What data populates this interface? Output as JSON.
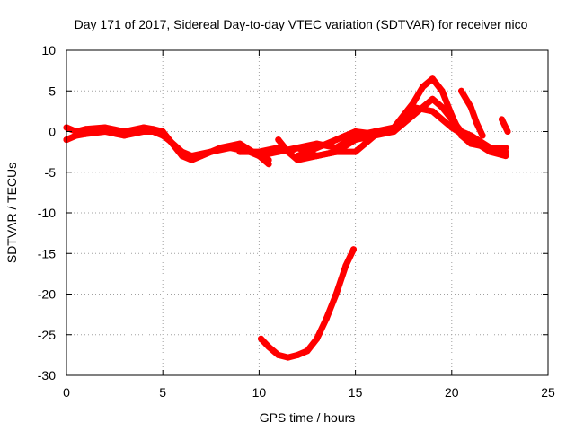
{
  "chart_data": {
    "type": "scatter",
    "title": "Day 171 of 2017, Sidereal Day-to-day VTEC variation (SDTVAR) for receiver nico",
    "xlabel": "GPS time / hours",
    "ylabel": "SDTVAR / TECUs",
    "xlim": [
      0,
      25
    ],
    "ylim": [
      -30,
      10
    ],
    "xticks": [
      "0",
      "5",
      "10",
      "15",
      "20",
      "25"
    ],
    "yticks": [
      "10",
      "5",
      "0",
      "-5",
      "-10",
      "-15",
      "-20",
      "-25",
      "-30"
    ],
    "grid": true,
    "color": "#ff0000",
    "series": [
      {
        "name": "track-1",
        "x": [
          0.0,
          0.5,
          1.0,
          2.0,
          3.0,
          4.0,
          4.5,
          5.0,
          5.5,
          6.0,
          6.5,
          7.0,
          8.0,
          9.0,
          10.0,
          10.5
        ],
        "y": [
          0.5,
          0.0,
          0.3,
          0.5,
          0.0,
          0.5,
          0.3,
          0.0,
          -1.5,
          -3.0,
          -3.5,
          -3.0,
          -2.0,
          -1.5,
          -3.0,
          -4.0
        ]
      },
      {
        "name": "track-2",
        "x": [
          0.0,
          0.5,
          1.0,
          2.0,
          3.0,
          4.0,
          4.5,
          5.0,
          5.3,
          6.0,
          6.5,
          7.5,
          8.5,
          9.5,
          10.5
        ],
        "y": [
          -1.0,
          -0.5,
          -0.3,
          0.0,
          -0.5,
          0.0,
          0.0,
          -0.5,
          -1.0,
          -2.5,
          -3.0,
          -2.5,
          -2.0,
          -2.5,
          -3.5
        ]
      },
      {
        "name": "track-3",
        "x": [
          9.0,
          10.0,
          11.0,
          11.5,
          12.0,
          13.0,
          14.0,
          15.0,
          16.0,
          17.0,
          18.0,
          18.5,
          19.0,
          19.5,
          20.0,
          20.5,
          21.0,
          22.0,
          22.8
        ],
        "y": [
          -2.5,
          -2.5,
          -2.0,
          -2.5,
          -2.0,
          -1.5,
          -2.0,
          -0.5,
          0.0,
          0.5,
          3.5,
          5.5,
          6.5,
          5.0,
          2.0,
          -0.5,
          -1.5,
          -2.0,
          -2.5
        ]
      },
      {
        "name": "track-4",
        "x": [
          10.0,
          11.0,
          12.0,
          13.0,
          14.0,
          15.0,
          16.0,
          17.0,
          17.5,
          18.0,
          19.0,
          19.5,
          20.0,
          20.5,
          21.0,
          22.0,
          22.8
        ],
        "y": [
          -3.0,
          -2.5,
          -2.0,
          -3.0,
          -2.5,
          -1.0,
          -0.5,
          0.0,
          1.0,
          2.0,
          4.0,
          3.0,
          1.5,
          0.0,
          -0.5,
          -2.0,
          -2.0
        ]
      },
      {
        "name": "track-5",
        "x": [
          12.0,
          13.0,
          14.0,
          14.5,
          15.0,
          16.0,
          16.5,
          17.0,
          17.5,
          18.0,
          19.0,
          20.0,
          21.0,
          22.0,
          22.8
        ],
        "y": [
          -3.0,
          -2.0,
          -1.0,
          -0.5,
          0.0,
          -0.3,
          0.0,
          0.5,
          1.5,
          3.0,
          2.5,
          0.5,
          -1.0,
          -2.5,
          -3.0
        ]
      },
      {
        "name": "track-6",
        "x": [
          11.0,
          11.5,
          12.0,
          13.0,
          14.0,
          15.0,
          15.5,
          16.0
        ],
        "y": [
          -1.0,
          -2.5,
          -3.5,
          -3.0,
          -2.5,
          -2.5,
          -1.5,
          -0.5
        ]
      },
      {
        "name": "track-7",
        "x": [
          20.5,
          21.0,
          21.3,
          21.6
        ],
        "y": [
          5.0,
          3.0,
          1.0,
          -0.5
        ]
      },
      {
        "name": "track-8",
        "x": [
          22.6,
          22.9
        ],
        "y": [
          1.5,
          0.0
        ]
      },
      {
        "name": "track-9",
        "x": [
          10.1,
          10.5,
          11.0,
          11.5,
          12.0,
          12.5,
          13.0,
          13.5,
          14.0,
          14.5,
          14.9
        ],
        "y": [
          -25.5,
          -26.5,
          -27.5,
          -27.8,
          -27.5,
          -27.0,
          -25.5,
          -23.0,
          -20.0,
          -16.5,
          -14.5
        ]
      }
    ]
  }
}
